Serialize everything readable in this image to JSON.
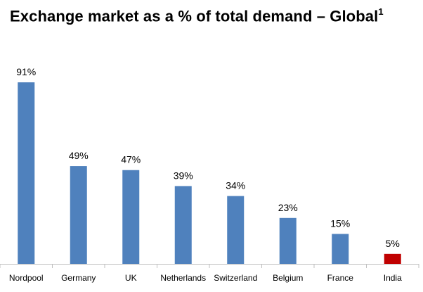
{
  "chart_data": {
    "type": "bar",
    "title": "Exchange market as a % of total demand – Global",
    "title_superscript": "1",
    "xlabel": "",
    "ylabel": "",
    "ylim": [
      0,
      100
    ],
    "grid": false,
    "legend": "none",
    "value_suffix": "%",
    "categories": [
      "Nordpool",
      "Germany",
      "UK",
      "Netherlands",
      "Switzerland",
      "Belgium",
      "France",
      "India"
    ],
    "values": [
      91,
      49,
      47,
      39,
      34,
      23,
      15,
      5
    ],
    "bar_colors": [
      "#4f81bd",
      "#4f81bd",
      "#4f81bd",
      "#4f81bd",
      "#4f81bd",
      "#4f81bd",
      "#4f81bd",
      "#c00000"
    ]
  }
}
